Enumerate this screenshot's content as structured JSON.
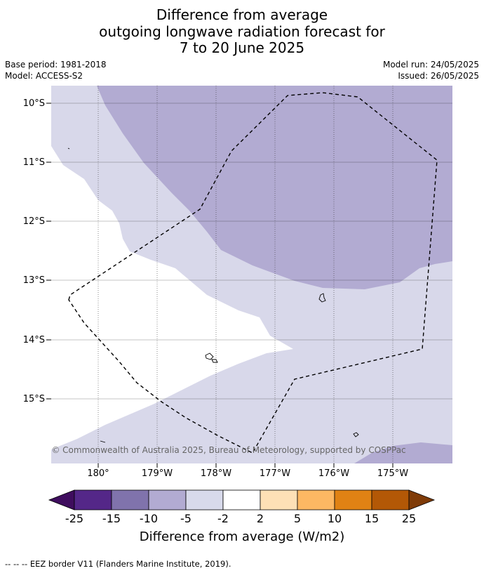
{
  "title": {
    "line1": "Difference from average",
    "line2": "outgoing longwave radiation forecast for",
    "line3": "7 to 20 June 2025"
  },
  "meta": {
    "base_period": "Base period: 1981-2018",
    "model": "Model: ACCESS-S2",
    "model_run": "Model run: 24/05/2025",
    "issued": "Issued: 26/05/2025"
  },
  "map": {
    "lat_labels": [
      "10°S",
      "11°S",
      "12°S",
      "13°S",
      "14°S",
      "15°S"
    ],
    "lon_labels": [
      "180°",
      "179°W",
      "178°W",
      "177°W",
      "176°W",
      "175°W"
    ],
    "copyright": "© Commonwealth of Australia 2025, Bureau of Meteorology, supported by COSPPac",
    "colors": {
      "anom_minus_10": "#b2abd2",
      "anom_minus_5": "#d8d8ea",
      "neutral": "#ffffff",
      "eez_line": "#000000"
    }
  },
  "colorbar": {
    "ticks": [
      "-25",
      "-15",
      "-10",
      "-5",
      "-2",
      "2",
      "5",
      "10",
      "15",
      "25"
    ],
    "colors": [
      "#3f0d5e",
      "#542788",
      "#8073ac",
      "#b2abd2",
      "#d8daeb",
      "#ffffff",
      "#fee0b6",
      "#fdb863",
      "#e08214",
      "#b35806",
      "#7f3b08"
    ],
    "label": "Difference from average (W/m2)"
  },
  "footer": "--  --  -- EEZ border V11 (Flanders Marine Institute, 2019)."
}
